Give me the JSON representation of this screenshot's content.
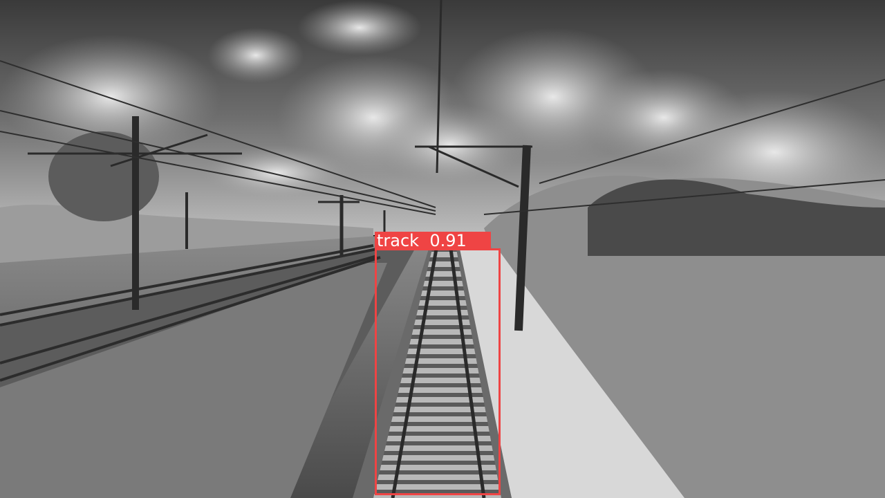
{
  "image": {
    "colormode": "grayscale",
    "subject": "railway-track-forward-view"
  },
  "detections": [
    {
      "label": "track",
      "score": "0.91",
      "caption": "track  0.91",
      "box_color": "#ef4444",
      "label_text_color": "#ffffff"
    }
  ]
}
